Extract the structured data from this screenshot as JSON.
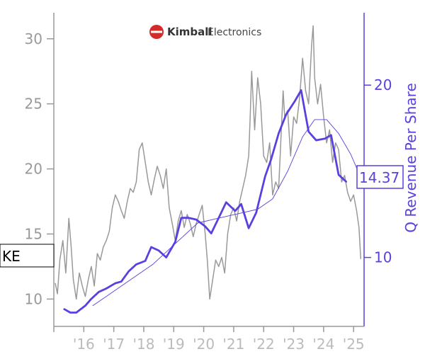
{
  "chart_data": {
    "type": "line",
    "ticker": "KE",
    "logo": {
      "name_bold": "Kimball",
      "name_regular": "Electronics"
    },
    "x_tick_labels": [
      "'16",
      "'17",
      "'18",
      "'19",
      "'20",
      "'21",
      "'22",
      "'23",
      "'24",
      "'25"
    ],
    "xlim": [
      2015.0,
      2025.35
    ],
    "y_left": {
      "ticks": [
        10,
        15,
        20,
        25,
        30
      ],
      "ylim": [
        7.9,
        32.0
      ]
    },
    "y_right": {
      "label": "Q Revenue Per Share",
      "ticks": [
        10,
        15,
        20
      ],
      "ylim": [
        6.0,
        24.2
      ]
    },
    "last_value_label": "14.37",
    "colors": {
      "price": "#999999",
      "revenue": "#5b3fe0",
      "axis_left": "#999999",
      "axis_right": "#5b3fe0",
      "logo_red": "#d42a2a"
    },
    "series": [
      {
        "axis": "left",
        "color": "#999999",
        "points": [
          [
            2015.05,
            11.2
          ],
          [
            2015.12,
            10.4
          ],
          [
            2015.2,
            13.0
          ],
          [
            2015.3,
            14.5
          ],
          [
            2015.4,
            12.0
          ],
          [
            2015.5,
            16.2
          ],
          [
            2015.58,
            14.0
          ],
          [
            2015.65,
            11.5
          ],
          [
            2015.75,
            10.0
          ],
          [
            2015.85,
            12.0
          ],
          [
            2015.95,
            11.0
          ],
          [
            2016.05,
            10.2
          ],
          [
            2016.15,
            11.5
          ],
          [
            2016.25,
            12.5
          ],
          [
            2016.35,
            11.0
          ],
          [
            2016.45,
            13.5
          ],
          [
            2016.55,
            13.0
          ],
          [
            2016.65,
            14.0
          ],
          [
            2016.75,
            14.5
          ],
          [
            2016.85,
            15.2
          ],
          [
            2016.95,
            17.0
          ],
          [
            2017.05,
            18.0
          ],
          [
            2017.15,
            17.5
          ],
          [
            2017.25,
            16.8
          ],
          [
            2017.35,
            16.2
          ],
          [
            2017.45,
            17.5
          ],
          [
            2017.55,
            18.5
          ],
          [
            2017.65,
            18.2
          ],
          [
            2017.75,
            19.0
          ],
          [
            2017.85,
            21.5
          ],
          [
            2017.95,
            22.0
          ],
          [
            2018.05,
            20.5
          ],
          [
            2018.15,
            19.0
          ],
          [
            2018.25,
            18.0
          ],
          [
            2018.35,
            19.2
          ],
          [
            2018.45,
            20.2
          ],
          [
            2018.55,
            19.5
          ],
          [
            2018.65,
            18.5
          ],
          [
            2018.75,
            20.0
          ],
          [
            2018.85,
            17.0
          ],
          [
            2018.95,
            15.8
          ],
          [
            2019.05,
            14.5
          ],
          [
            2019.15,
            16.0
          ],
          [
            2019.25,
            16.8
          ],
          [
            2019.35,
            15.5
          ],
          [
            2019.45,
            16.5
          ],
          [
            2019.55,
            15.8
          ],
          [
            2019.65,
            14.8
          ],
          [
            2019.75,
            15.8
          ],
          [
            2019.85,
            16.5
          ],
          [
            2019.95,
            17.2
          ],
          [
            2020.05,
            15.0
          ],
          [
            2020.12,
            13.0
          ],
          [
            2020.2,
            10.0
          ],
          [
            2020.3,
            11.5
          ],
          [
            2020.4,
            13.0
          ],
          [
            2020.5,
            12.5
          ],
          [
            2020.6,
            13.2
          ],
          [
            2020.7,
            12.0
          ],
          [
            2020.8,
            15.0
          ],
          [
            2020.9,
            16.5
          ],
          [
            2021.0,
            17.0
          ],
          [
            2021.1,
            16.0
          ],
          [
            2021.2,
            17.5
          ],
          [
            2021.3,
            18.5
          ],
          [
            2021.4,
            19.5
          ],
          [
            2021.5,
            21.0
          ],
          [
            2021.55,
            24.0
          ],
          [
            2021.6,
            27.5
          ],
          [
            2021.7,
            23.0
          ],
          [
            2021.8,
            27.0
          ],
          [
            2021.9,
            25.0
          ],
          [
            2022.0,
            21.0
          ],
          [
            2022.1,
            20.5
          ],
          [
            2022.2,
            22.0
          ],
          [
            2022.3,
            18.0
          ],
          [
            2022.4,
            19.0
          ],
          [
            2022.5,
            18.5
          ],
          [
            2022.6,
            23.5
          ],
          [
            2022.65,
            26.0
          ],
          [
            2022.7,
            24.0
          ],
          [
            2022.8,
            24.5
          ],
          [
            2022.9,
            21.0
          ],
          [
            2023.0,
            24.0
          ],
          [
            2023.1,
            23.5
          ],
          [
            2023.2,
            25.5
          ],
          [
            2023.3,
            28.5
          ],
          [
            2023.4,
            26.0
          ],
          [
            2023.5,
            25.0
          ],
          [
            2023.6,
            29.5
          ],
          [
            2023.65,
            31.0
          ],
          [
            2023.7,
            27.0
          ],
          [
            2023.8,
            25.0
          ],
          [
            2023.9,
            26.5
          ],
          [
            2024.0,
            24.0
          ],
          [
            2024.1,
            22.0
          ],
          [
            2024.2,
            23.0
          ],
          [
            2024.3,
            20.5
          ],
          [
            2024.4,
            22.0
          ],
          [
            2024.5,
            21.5
          ],
          [
            2024.6,
            19.0
          ],
          [
            2024.7,
            19.5
          ],
          [
            2024.8,
            18.2
          ],
          [
            2024.9,
            17.5
          ],
          [
            2025.0,
            18.0
          ],
          [
            2025.1,
            16.8
          ],
          [
            2025.18,
            15.5
          ],
          [
            2025.24,
            13.1
          ]
        ]
      },
      {
        "name": "Q Revenue Per Share",
        "axis": "right",
        "color": "#5b3fe0",
        "points": [
          [
            2015.35,
            7.0
          ],
          [
            2015.55,
            6.8
          ],
          [
            2015.75,
            6.8
          ],
          [
            2016.05,
            7.2
          ],
          [
            2016.25,
            7.6
          ],
          [
            2016.5,
            8.0
          ],
          [
            2016.75,
            8.2
          ],
          [
            2017.05,
            8.5
          ],
          [
            2017.25,
            8.6
          ],
          [
            2017.5,
            9.2
          ],
          [
            2017.75,
            9.6
          ],
          [
            2018.05,
            9.8
          ],
          [
            2018.25,
            10.6
          ],
          [
            2018.5,
            10.4
          ],
          [
            2018.75,
            10.0
          ],
          [
            2019.05,
            10.9
          ],
          [
            2019.25,
            12.3
          ],
          [
            2019.5,
            12.3
          ],
          [
            2019.75,
            12.2
          ],
          [
            2020.05,
            11.8
          ],
          [
            2020.25,
            11.4
          ],
          [
            2020.5,
            12.3
          ],
          [
            2020.75,
            13.2
          ],
          [
            2021.05,
            12.7
          ],
          [
            2021.25,
            13.1
          ],
          [
            2021.5,
            11.7
          ],
          [
            2021.75,
            12.6
          ],
          [
            2022.05,
            14.7
          ],
          [
            2022.25,
            15.7
          ],
          [
            2022.5,
            17.2
          ],
          [
            2022.75,
            18.3
          ],
          [
            2023.05,
            19.1
          ],
          [
            2023.25,
            19.7
          ],
          [
            2023.5,
            17.3
          ],
          [
            2023.75,
            16.8
          ],
          [
            2024.05,
            16.9
          ],
          [
            2024.25,
            17.1
          ],
          [
            2024.5,
            14.8
          ],
          [
            2024.75,
            14.4
          ]
        ]
      },
      {
        "axis": "right",
        "color": "#5b3fe0",
        "points": [
          [
            2016.3,
            7.2
          ],
          [
            2016.8,
            7.8
          ],
          [
            2017.3,
            8.4
          ],
          [
            2017.8,
            9.0
          ],
          [
            2018.3,
            9.6
          ],
          [
            2018.8,
            10.4
          ],
          [
            2019.3,
            11.2
          ],
          [
            2019.8,
            12.0
          ],
          [
            2020.3,
            12.2
          ],
          [
            2020.8,
            12.4
          ],
          [
            2021.3,
            12.6
          ],
          [
            2021.8,
            12.8
          ],
          [
            2022.3,
            13.4
          ],
          [
            2022.8,
            15.0
          ],
          [
            2023.3,
            17.0
          ],
          [
            2023.7,
            18.0
          ],
          [
            2024.1,
            18.0
          ],
          [
            2024.5,
            17.2
          ],
          [
            2024.9,
            16.0
          ],
          [
            2025.15,
            15.0
          ]
        ]
      }
    ]
  }
}
